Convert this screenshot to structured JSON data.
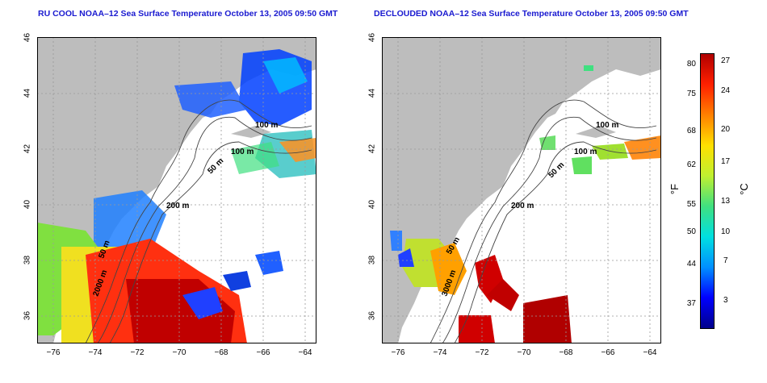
{
  "maps": [
    {
      "title": "RU COOL NOAA–12 Sea Surface Temperature October 13, 2005 09:50 GMT",
      "type": "map",
      "lat_ticks": [
        "46",
        "44",
        "42",
        "40",
        "38",
        "36"
      ],
      "lon_ticks": [
        "−76",
        "−74",
        "−72",
        "−70",
        "−68",
        "−66",
        "−64"
      ],
      "contours": [
        "50 m",
        "100 m",
        "200 m",
        "100 m",
        "2000 m",
        "50 m"
      ]
    },
    {
      "title": "DECLOUDED NOAA–12 Sea Surface Temperature October 13, 2005 09:50 GMT",
      "type": "map",
      "lat_ticks": [
        "46",
        "44",
        "42",
        "40",
        "38",
        "36"
      ],
      "lon_ticks": [
        "−76",
        "−74",
        "−72",
        "−70",
        "−68",
        "−66",
        "−64"
      ],
      "contours": [
        "100 m",
        "100 m",
        "50 m",
        "200 m",
        "50 m",
        "3000 m"
      ]
    }
  ],
  "colorbar": {
    "fahrenheit": [
      "80",
      "75",
      "68",
      "62",
      "55",
      "50",
      "44",
      "37"
    ],
    "celsius": [
      "27",
      "24",
      "20",
      "17",
      "13",
      "10",
      "7",
      "3"
    ],
    "unit_f": "°F",
    "unit_c": "°C",
    "colors": [
      "#00008b",
      "#0000ff",
      "#0090ff",
      "#00e0e0",
      "#40e080",
      "#c0f030",
      "#ffe000",
      "#ff8000",
      "#ff2000",
      "#b00000"
    ]
  }
}
